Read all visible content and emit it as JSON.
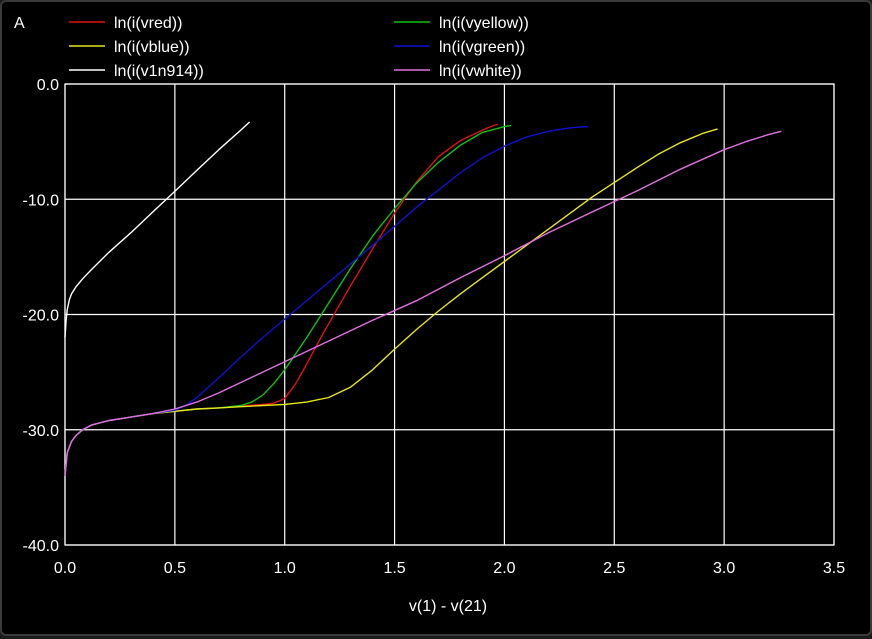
{
  "chart_data": {
    "type": "line",
    "yunit": "A",
    "xlabel": "v(1) - v(21)",
    "ylabel": "",
    "xlim": [
      0.0,
      3.5
    ],
    "ylim": [
      -40.0,
      0.0
    ],
    "xticks": [
      "0.0",
      "0.5",
      "1.0",
      "1.5",
      "2.0",
      "2.5",
      "3.0",
      "3.5"
    ],
    "yticks": [
      "0.0",
      "-10.0",
      "-20.0",
      "-30.0",
      "-40.0"
    ],
    "grid": true,
    "background": "#000000",
    "grid_color": "#ffffff",
    "legend_placement": "top",
    "series": [
      {
        "name": "ln(i(vred))",
        "color": "#e01010",
        "x": [
          0.0,
          0.01,
          0.03,
          0.05,
          0.08,
          0.12,
          0.2,
          0.3,
          0.4,
          0.5,
          0.6,
          0.7,
          0.8,
          0.9,
          0.95,
          1.0,
          1.05,
          1.1,
          1.15,
          1.2,
          1.3,
          1.4,
          1.5,
          1.6,
          1.7,
          1.8,
          1.9,
          1.95,
          1.97
        ],
        "y": [
          -34.0,
          -32.0,
          -31.0,
          -30.5,
          -30.0,
          -29.6,
          -29.2,
          -28.9,
          -28.6,
          -28.4,
          -28.2,
          -28.1,
          -27.95,
          -27.8,
          -27.7,
          -27.3,
          -26.0,
          -24.3,
          -22.5,
          -20.8,
          -17.5,
          -14.3,
          -11.2,
          -8.5,
          -6.3,
          -4.9,
          -4.0,
          -3.6,
          -3.5
        ]
      },
      {
        "name": "ln(i(vyellow))",
        "color": "#10c010",
        "x": [
          0.0,
          0.01,
          0.03,
          0.05,
          0.08,
          0.12,
          0.2,
          0.3,
          0.4,
          0.5,
          0.6,
          0.7,
          0.8,
          0.85,
          0.9,
          0.95,
          1.0,
          1.1,
          1.2,
          1.3,
          1.4,
          1.5,
          1.6,
          1.7,
          1.8,
          1.9,
          2.0,
          2.03
        ],
        "y": [
          -34.0,
          -32.0,
          -31.0,
          -30.5,
          -30.0,
          -29.6,
          -29.2,
          -28.9,
          -28.6,
          -28.4,
          -28.2,
          -28.1,
          -27.9,
          -27.6,
          -27.0,
          -26.0,
          -24.8,
          -22.0,
          -19.0,
          -16.0,
          -13.2,
          -10.8,
          -8.6,
          -6.8,
          -5.3,
          -4.2,
          -3.7,
          -3.6
        ]
      },
      {
        "name": "ln(i(vblue))",
        "color": "#e6e61a",
        "x": [
          0.0,
          0.01,
          0.03,
          0.05,
          0.08,
          0.12,
          0.2,
          0.3,
          0.4,
          0.5,
          0.6,
          0.7,
          0.8,
          0.9,
          1.0,
          1.1,
          1.2,
          1.3,
          1.4,
          1.5,
          1.6,
          1.7,
          1.8,
          1.9,
          2.0,
          2.2,
          2.4,
          2.6,
          2.7,
          2.8,
          2.9,
          2.97
        ],
        "y": [
          -34.0,
          -32.0,
          -31.0,
          -30.5,
          -30.0,
          -29.6,
          -29.2,
          -28.9,
          -28.6,
          -28.4,
          -28.2,
          -28.1,
          -28.0,
          -27.9,
          -27.8,
          -27.6,
          -27.2,
          -26.3,
          -24.8,
          -23.0,
          -21.3,
          -19.7,
          -18.2,
          -16.8,
          -15.4,
          -12.6,
          -9.8,
          -7.3,
          -6.1,
          -5.1,
          -4.3,
          -3.9
        ]
      },
      {
        "name": "ln(i(vgreen))",
        "color": "#1010d0",
        "x": [
          0.0,
          0.01,
          0.03,
          0.05,
          0.08,
          0.12,
          0.2,
          0.3,
          0.4,
          0.5,
          0.55,
          0.6,
          0.7,
          0.8,
          0.9,
          1.0,
          1.2,
          1.4,
          1.6,
          1.8,
          1.9,
          2.0,
          2.1,
          2.2,
          2.3,
          2.38
        ],
        "y": [
          -34.0,
          -32.0,
          -31.0,
          -30.5,
          -30.0,
          -29.6,
          -29.2,
          -28.9,
          -28.6,
          -28.3,
          -27.9,
          -27.2,
          -25.5,
          -23.7,
          -22.0,
          -20.4,
          -17.2,
          -14.0,
          -10.7,
          -7.7,
          -6.4,
          -5.4,
          -4.6,
          -4.1,
          -3.8,
          -3.7
        ]
      },
      {
        "name": "ln(i(v1n914))",
        "color": "#ffffff",
        "x": [
          0.0,
          0.005,
          0.01,
          0.02,
          0.03,
          0.05,
          0.08,
          0.12,
          0.2,
          0.3,
          0.4,
          0.5,
          0.6,
          0.7,
          0.8,
          0.84
        ],
        "y": [
          -22.0,
          -20.5,
          -19.6,
          -18.7,
          -18.2,
          -17.6,
          -16.9,
          -16.1,
          -14.6,
          -12.9,
          -11.1,
          -9.3,
          -7.5,
          -5.7,
          -4.0,
          -3.3
        ]
      },
      {
        "name": "ln(i(vwhite))",
        "color": "#e070e0",
        "x": [
          0.0,
          0.01,
          0.03,
          0.05,
          0.08,
          0.12,
          0.2,
          0.3,
          0.4,
          0.5,
          0.6,
          0.7,
          0.8,
          0.9,
          1.0,
          1.2,
          1.4,
          1.6,
          1.8,
          2.0,
          2.2,
          2.4,
          2.6,
          2.8,
          3.0,
          3.1,
          3.2,
          3.26
        ],
        "y": [
          -34.0,
          -32.0,
          -31.0,
          -30.5,
          -30.0,
          -29.6,
          -29.2,
          -28.9,
          -28.6,
          -28.2,
          -27.6,
          -26.8,
          -25.9,
          -25.0,
          -24.1,
          -22.3,
          -20.5,
          -18.8,
          -16.8,
          -14.9,
          -12.9,
          -11.1,
          -9.3,
          -7.4,
          -5.7,
          -5.0,
          -4.4,
          -4.1
        ]
      }
    ]
  }
}
